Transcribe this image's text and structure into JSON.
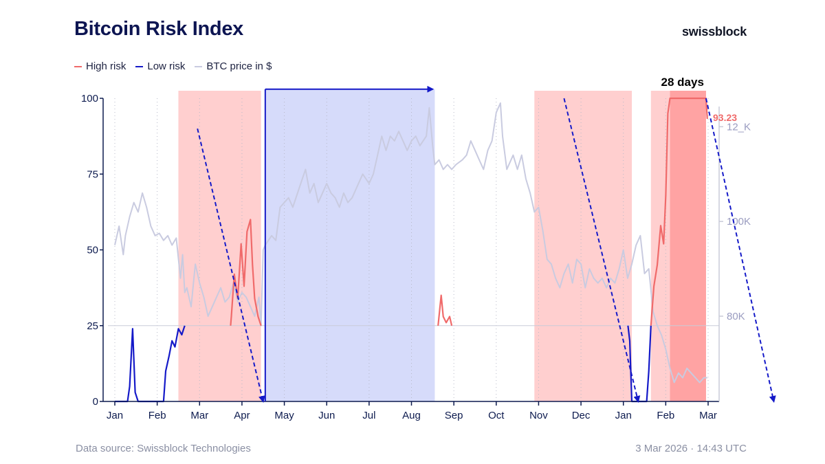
{
  "title": "Bitcoin Risk Index",
  "brand": "swissblock",
  "legend": [
    {
      "label": "High risk",
      "color": "#f06a6a"
    },
    {
      "label": "Low risk",
      "color": "#1419c8"
    },
    {
      "label": "BTC price in $",
      "color": "#c9cbe0"
    }
  ],
  "footer": {
    "source": "Data source: Swissblock Technologies",
    "timestamp": "3 Mar 2026 · 14:43 UTC"
  },
  "chart_data": {
    "type": "line",
    "x_unit": "months (Jan 2025 = 0)",
    "x_tick_labels": [
      "Jan",
      "Feb",
      "Mar",
      "Apr",
      "May",
      "Jun",
      "Jul",
      "Aug",
      "Sep",
      "Oct",
      "Nov",
      "Dec",
      "Jan",
      "Feb",
      "Mar"
    ],
    "y_left": {
      "ticks": [
        0,
        25,
        50,
        75,
        100
      ],
      "range": [
        0,
        100
      ]
    },
    "y_right": {
      "ticks": [
        "80K",
        "100K",
        "12_K"
      ],
      "tick_values": [
        80000,
        100000,
        120000
      ],
      "range": [
        62000,
        126000
      ]
    },
    "threshold": 25,
    "current_value_label": "93.23",
    "annotation": "28 days",
    "high_risk_zones": [
      [
        1.5,
        3.45
      ],
      [
        9.9,
        12.2
      ],
      [
        12.65,
        13.95
      ]
    ],
    "current_zone": [
      13.1,
      13.95
    ],
    "low_risk_zone": [
      3.55,
      7.55
    ],
    "low_risk_arrow": {
      "from_x": 3.55,
      "to_x": 7.5,
      "y": 103
    },
    "trend_arrows": [
      {
        "from": [
          1.95,
          90
        ],
        "to": [
          3.5,
          0
        ]
      },
      {
        "from": [
          10.6,
          100
        ],
        "to": [
          12.35,
          0
        ]
      },
      {
        "from": [
          13.95,
          100
        ],
        "to": [
          15.55,
          0
        ]
      }
    ],
    "series": [
      {
        "name": "Bitcoin Risk Index",
        "points": [
          [
            0,
            0
          ],
          [
            0.3,
            0
          ],
          [
            0.35,
            5
          ],
          [
            0.42,
            24
          ],
          [
            0.48,
            3
          ],
          [
            0.55,
            0
          ],
          [
            1.15,
            0
          ],
          [
            1.2,
            10
          ],
          [
            1.28,
            15
          ],
          [
            1.35,
            20
          ],
          [
            1.42,
            18
          ],
          [
            1.5,
            24
          ],
          [
            1.58,
            22
          ],
          [
            1.65,
            25
          ],
          [
            1.75,
            32
          ],
          [
            1.8,
            48
          ],
          [
            1.85,
            20
          ],
          [
            1.92,
            55
          ],
          [
            2.0,
            88
          ],
          [
            2.05,
            80
          ],
          [
            2.1,
            70
          ],
          [
            2.15,
            74
          ],
          [
            2.2,
            60
          ],
          [
            2.25,
            70
          ],
          [
            2.3,
            56
          ],
          [
            2.38,
            60
          ],
          [
            2.45,
            52
          ],
          [
            2.52,
            58
          ],
          [
            2.58,
            48
          ],
          [
            2.65,
            35
          ],
          [
            2.7,
            20
          ],
          [
            2.75,
            28
          ],
          [
            2.82,
            42
          ],
          [
            2.9,
            34
          ],
          [
            2.98,
            52
          ],
          [
            3.05,
            38
          ],
          [
            3.12,
            56
          ],
          [
            3.2,
            60
          ],
          [
            3.25,
            45
          ],
          [
            3.3,
            34
          ],
          [
            3.38,
            28
          ],
          [
            3.45,
            25
          ],
          [
            3.5,
            15
          ],
          [
            3.55,
            0
          ],
          [
            5.6,
            0
          ],
          [
            5.62,
            4
          ],
          [
            5.65,
            0
          ],
          [
            7.5,
            0
          ],
          [
            7.58,
            10
          ],
          [
            7.62,
            24
          ],
          [
            7.7,
            35
          ],
          [
            7.75,
            28
          ],
          [
            7.82,
            26
          ],
          [
            7.9,
            28
          ],
          [
            7.95,
            25
          ],
          [
            8.0,
            20
          ],
          [
            8.05,
            12
          ],
          [
            8.1,
            8
          ],
          [
            8.15,
            10
          ],
          [
            8.2,
            4
          ],
          [
            8.25,
            5
          ],
          [
            8.3,
            0
          ],
          [
            8.65,
            0
          ],
          [
            8.7,
            4
          ],
          [
            8.75,
            0
          ],
          [
            9.55,
            0
          ],
          [
            9.6,
            8
          ],
          [
            9.65,
            0
          ],
          [
            9.85,
            0
          ],
          [
            9.9,
            20
          ],
          [
            9.95,
            35
          ],
          [
            10.0,
            40
          ],
          [
            10.05,
            30
          ],
          [
            10.1,
            40
          ],
          [
            10.15,
            25
          ],
          [
            10.2,
            40
          ],
          [
            10.25,
            62
          ],
          [
            10.3,
            52
          ],
          [
            10.35,
            58
          ],
          [
            10.45,
            55
          ],
          [
            10.52,
            68
          ],
          [
            10.6,
            100
          ],
          [
            10.66,
            72
          ],
          [
            10.72,
            58
          ],
          [
            10.78,
            55
          ],
          [
            10.85,
            42
          ],
          [
            10.92,
            56
          ],
          [
            11.0,
            45
          ],
          [
            11.05,
            50
          ],
          [
            11.12,
            58
          ],
          [
            11.2,
            75
          ],
          [
            11.25,
            86
          ],
          [
            11.3,
            60
          ],
          [
            11.38,
            66
          ],
          [
            11.45,
            58
          ],
          [
            11.5,
            62
          ],
          [
            11.55,
            48
          ],
          [
            11.62,
            72
          ],
          [
            11.7,
            94
          ],
          [
            11.75,
            80
          ],
          [
            11.8,
            70
          ],
          [
            11.88,
            60
          ],
          [
            11.95,
            40
          ],
          [
            12.0,
            35
          ],
          [
            12.05,
            28
          ],
          [
            12.1,
            26
          ],
          [
            12.15,
            20
          ],
          [
            12.2,
            0
          ],
          [
            12.55,
            0
          ],
          [
            12.6,
            10
          ],
          [
            12.65,
            25
          ],
          [
            12.72,
            38
          ],
          [
            12.8,
            45
          ],
          [
            12.88,
            58
          ],
          [
            12.95,
            52
          ],
          [
            13.0,
            68
          ],
          [
            13.05,
            95
          ],
          [
            13.1,
            100
          ],
          [
            13.95,
            100
          ],
          [
            13.98,
            93.23
          ]
        ]
      },
      {
        "name": "BTC price in $",
        "points": [
          [
            0,
            95000
          ],
          [
            0.1,
            99000
          ],
          [
            0.2,
            93000
          ],
          [
            0.25,
            97000
          ],
          [
            0.35,
            101000
          ],
          [
            0.45,
            104000
          ],
          [
            0.55,
            102000
          ],
          [
            0.65,
            106000
          ],
          [
            0.75,
            103000
          ],
          [
            0.85,
            99000
          ],
          [
            0.95,
            97000
          ],
          [
            1.05,
            97500
          ],
          [
            1.15,
            96000
          ],
          [
            1.25,
            97000
          ],
          [
            1.35,
            95000
          ],
          [
            1.45,
            96500
          ],
          [
            1.55,
            88000
          ],
          [
            1.6,
            93000
          ],
          [
            1.65,
            85000
          ],
          [
            1.7,
            86000
          ],
          [
            1.8,
            82000
          ],
          [
            1.9,
            91000
          ],
          [
            2.0,
            87000
          ],
          [
            2.1,
            84000
          ],
          [
            2.2,
            80000
          ],
          [
            2.3,
            82000
          ],
          [
            2.4,
            84000
          ],
          [
            2.5,
            86000
          ],
          [
            2.6,
            83000
          ],
          [
            2.7,
            84000
          ],
          [
            2.8,
            87000
          ],
          [
            2.9,
            83000
          ],
          [
            3.0,
            85000
          ],
          [
            3.1,
            84000
          ],
          [
            3.2,
            82000
          ],
          [
            3.3,
            80000
          ],
          [
            3.4,
            84000
          ],
          [
            3.45,
            78000
          ],
          [
            3.5,
            94000
          ],
          [
            3.55,
            95000
          ],
          [
            3.7,
            97000
          ],
          [
            3.8,
            96000
          ],
          [
            3.9,
            103000
          ],
          [
            4.0,
            104000
          ],
          [
            4.1,
            105000
          ],
          [
            4.2,
            103000
          ],
          [
            4.35,
            107000
          ],
          [
            4.5,
            111000
          ],
          [
            4.6,
            106000
          ],
          [
            4.7,
            108000
          ],
          [
            4.8,
            104000
          ],
          [
            4.9,
            106000
          ],
          [
            5.0,
            108000
          ],
          [
            5.1,
            106000
          ],
          [
            5.2,
            105000
          ],
          [
            5.3,
            103000
          ],
          [
            5.4,
            106000
          ],
          [
            5.5,
            104000
          ],
          [
            5.6,
            105000
          ],
          [
            5.75,
            108000
          ],
          [
            5.85,
            110000
          ],
          [
            6.0,
            108000
          ],
          [
            6.1,
            110000
          ],
          [
            6.2,
            114000
          ],
          [
            6.3,
            118000
          ],
          [
            6.4,
            115000
          ],
          [
            6.5,
            118000
          ],
          [
            6.6,
            117000
          ],
          [
            6.7,
            119000
          ],
          [
            6.8,
            117000
          ],
          [
            6.9,
            115000
          ],
          [
            7.0,
            117000
          ],
          [
            7.1,
            118000
          ],
          [
            7.2,
            116000
          ],
          [
            7.35,
            118000
          ],
          [
            7.42,
            124000
          ],
          [
            7.5,
            116000
          ],
          [
            7.55,
            112000
          ],
          [
            7.65,
            113000
          ],
          [
            7.75,
            111000
          ],
          [
            7.85,
            112000
          ],
          [
            7.95,
            111000
          ],
          [
            8.05,
            112000
          ],
          [
            8.2,
            113000
          ],
          [
            8.3,
            114000
          ],
          [
            8.4,
            117000
          ],
          [
            8.5,
            115000
          ],
          [
            8.6,
            113000
          ],
          [
            8.7,
            111000
          ],
          [
            8.8,
            115000
          ],
          [
            8.9,
            117000
          ],
          [
            9.0,
            123000
          ],
          [
            9.1,
            125000
          ],
          [
            9.15,
            118000
          ],
          [
            9.25,
            111000
          ],
          [
            9.4,
            114000
          ],
          [
            9.5,
            111000
          ],
          [
            9.6,
            114000
          ],
          [
            9.7,
            109000
          ],
          [
            9.8,
            106000
          ],
          [
            9.9,
            102000
          ],
          [
            10.0,
            103000
          ],
          [
            10.1,
            98000
          ],
          [
            10.2,
            92000
          ],
          [
            10.3,
            91000
          ],
          [
            10.4,
            88000
          ],
          [
            10.5,
            86000
          ],
          [
            10.6,
            89000
          ],
          [
            10.7,
            91000
          ],
          [
            10.8,
            87000
          ],
          [
            10.9,
            92000
          ],
          [
            11.0,
            91000
          ],
          [
            11.1,
            86000
          ],
          [
            11.2,
            90000
          ],
          [
            11.3,
            88000
          ],
          [
            11.4,
            87000
          ],
          [
            11.5,
            88000
          ],
          [
            11.6,
            86000
          ],
          [
            11.7,
            88000
          ],
          [
            11.8,
            87000
          ],
          [
            11.9,
            90000
          ],
          [
            12.0,
            94000
          ],
          [
            12.1,
            88000
          ],
          [
            12.2,
            91000
          ],
          [
            12.3,
            95000
          ],
          [
            12.4,
            97000
          ],
          [
            12.5,
            89000
          ],
          [
            12.6,
            90000
          ],
          [
            12.7,
            81000
          ],
          [
            12.8,
            78000
          ],
          [
            12.9,
            76000
          ],
          [
            13.0,
            73000
          ],
          [
            13.1,
            69000
          ],
          [
            13.2,
            66000
          ],
          [
            13.3,
            68000
          ],
          [
            13.4,
            67000
          ],
          [
            13.5,
            69000
          ],
          [
            13.6,
            68000
          ],
          [
            13.7,
            67000
          ],
          [
            13.8,
            66000
          ],
          [
            13.9,
            67000
          ],
          [
            13.98,
            67000
          ]
        ]
      }
    ]
  }
}
